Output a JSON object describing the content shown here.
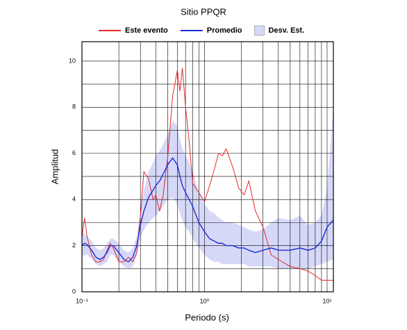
{
  "chart_data": {
    "type": "line",
    "title": "Sitio PPQR",
    "xlabel": "Periodo (s)",
    "ylabel": "Amplitud",
    "xscale": "log",
    "grid": true,
    "xlim": [
      0.1,
      11.25
    ],
    "ylim": [
      0,
      10.84
    ],
    "xticks": [
      {
        "value": 0.1,
        "label": "10⁻¹"
      },
      {
        "value": 1,
        "label": "10⁰"
      },
      {
        "value": 10,
        "label": "10¹"
      }
    ],
    "xminor": [
      0.2,
      0.3,
      0.4,
      0.5,
      0.6,
      0.7,
      0.8,
      0.9,
      2,
      3,
      4,
      5,
      6,
      7,
      8,
      9
    ],
    "yticks": [
      0,
      2,
      4,
      6,
      8,
      10
    ],
    "yminor": [
      1,
      3,
      5,
      7,
      9
    ],
    "x": [
      0.1,
      0.105,
      0.11,
      0.12,
      0.13,
      0.14,
      0.15,
      0.16,
      0.17,
      0.18,
      0.2,
      0.22,
      0.24,
      0.26,
      0.28,
      0.3,
      0.32,
      0.35,
      0.38,
      0.4,
      0.43,
      0.46,
      0.5,
      0.55,
      0.6,
      0.63,
      0.66,
      0.7,
      0.75,
      0.8,
      0.9,
      1.0,
      1.1,
      1.2,
      1.3,
      1.4,
      1.5,
      1.7,
      1.9,
      2.1,
      2.3,
      2.6,
      3.0,
      3.5,
      4,
      5,
      6,
      7,
      8,
      9,
      10,
      11.2
    ],
    "series": [
      {
        "name": "Este evento",
        "color": "#e8262a",
        "values": [
          2.4,
          3.2,
          2.4,
          1.6,
          1.3,
          1.3,
          1.4,
          1.8,
          2.1,
          1.9,
          1.3,
          1.3,
          1.5,
          1.3,
          1.7,
          3.3,
          5.2,
          4.9,
          4.0,
          4.2,
          3.5,
          4.2,
          5.8,
          8.5,
          9.6,
          8.7,
          9.7,
          8.0,
          6.5,
          4.7,
          4.3,
          3.9,
          4.6,
          5.3,
          6.0,
          5.9,
          6.2,
          5.4,
          4.5,
          4.2,
          4.8,
          3.5,
          2.8,
          1.6,
          1.4,
          1.1,
          1.0,
          0.9,
          0.7,
          0.5,
          0.5,
          0.5
        ]
      },
      {
        "name": "Promedio",
        "color": "#1a2bd6",
        "values": [
          2.0,
          2.1,
          2.05,
          1.8,
          1.5,
          1.4,
          1.5,
          1.7,
          2.0,
          2.0,
          1.7,
          1.4,
          1.3,
          1.5,
          2.0,
          2.9,
          3.5,
          4.1,
          4.4,
          4.6,
          4.8,
          5.1,
          5.5,
          5.8,
          5.5,
          5.0,
          4.6,
          4.3,
          4.0,
          3.7,
          3.0,
          2.6,
          2.3,
          2.2,
          2.1,
          2.1,
          2.0,
          2.0,
          1.9,
          1.9,
          1.8,
          1.7,
          1.8,
          1.9,
          1.8,
          1.8,
          1.9,
          1.8,
          1.9,
          2.2,
          2.8,
          3.1
        ]
      },
      {
        "name": "Desv. Est.",
        "color": "#d6d8f8",
        "upper": [
          2.6,
          2.5,
          2.4,
          2.2,
          1.9,
          1.8,
          1.9,
          2.1,
          2.3,
          2.3,
          2.1,
          1.8,
          1.7,
          1.9,
          2.4,
          3.5,
          4.4,
          5.2,
          5.6,
          5.9,
          6.1,
          6.4,
          6.8,
          7.4,
          7.2,
          6.6,
          6.2,
          5.9,
          5.6,
          5.2,
          4.3,
          3.8,
          3.5,
          3.4,
          3.2,
          3.1,
          3.0,
          3.0,
          2.9,
          2.8,
          2.7,
          2.6,
          2.7,
          3.0,
          3.2,
          3.1,
          3.3,
          2.9,
          3.0,
          3.3,
          4.5,
          7.8
        ],
        "lower": [
          1.5,
          1.6,
          1.6,
          1.4,
          1.2,
          1.1,
          1.2,
          1.3,
          1.6,
          1.6,
          1.3,
          1.1,
          1.0,
          1.1,
          1.6,
          2.3,
          2.7,
          3.0,
          3.2,
          3.3,
          3.5,
          3.7,
          4.0,
          4.1,
          3.8,
          3.4,
          3.1,
          2.8,
          2.6,
          2.3,
          1.9,
          1.6,
          1.4,
          1.3,
          1.3,
          1.2,
          1.2,
          1.2,
          1.2,
          1.2,
          1.1,
          1.1,
          1.1,
          1.1,
          1.0,
          1.0,
          1.0,
          1.0,
          1.1,
          1.2,
          1.3,
          1.4
        ]
      }
    ]
  }
}
